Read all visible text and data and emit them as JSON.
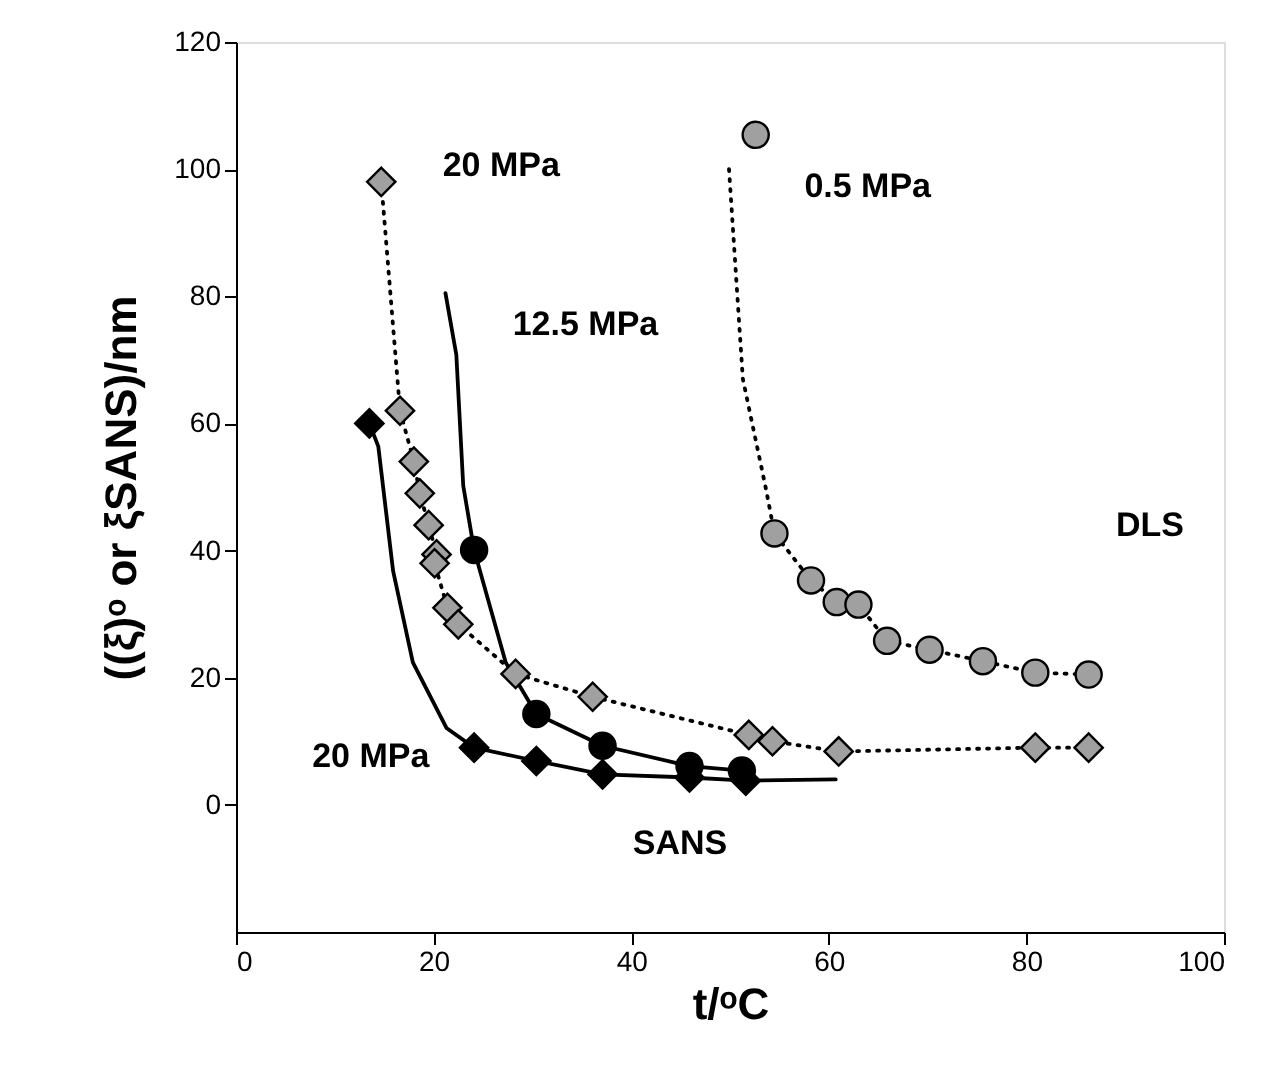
{
  "chart_data": {
    "type": "scatter",
    "xlabel": "t/ᵒC",
    "ylabel": "((ξ)ᵒ or ξSANS)/nm",
    "xlim": [
      0,
      100
    ],
    "xticks": [
      0,
      20,
      40,
      60,
      80,
      100
    ],
    "ylim": [
      -20,
      120
    ],
    "yticks": [
      0,
      20,
      40,
      60,
      80,
      100,
      120
    ],
    "grid": false,
    "series": [
      {
        "type": "line",
        "marker": "none",
        "line_style": "dotted",
        "color": "#000000",
        "x": [
          49.9,
          51.3,
          53.6,
          54.5,
          58.2,
          60.8,
          63.0,
          65.9,
          70.2,
          75.6,
          80.9,
          86.3
        ],
        "values": [
          100,
          67,
          50,
          42.7,
          35.3,
          31.9,
          31.5,
          25.8,
          24.4,
          22.6,
          20.8,
          20.5
        ]
      },
      {
        "name": "0.5 MPa",
        "marker": "circle",
        "color": "#a0a0a0",
        "x": [
          52.6,
          54.5,
          58.2,
          60.8,
          63.0,
          65.9,
          70.2,
          75.6,
          80.9,
          86.3
        ],
        "values": [
          105.4,
          42.7,
          35.3,
          31.9,
          31.5,
          25.8,
          24.4,
          22.6,
          20.8,
          20.5
        ]
      },
      {
        "type": "line",
        "marker": "none",
        "line_style": "dotted",
        "color": "#000000",
        "x": [
          14.7,
          16.6,
          18.0,
          18.6,
          19.5,
          20.3,
          20.1,
          21.4,
          22.5,
          28.3,
          36.1,
          51.9,
          54.3,
          61.0,
          80.9,
          86.3
        ],
        "values": [
          98,
          62,
          54,
          49,
          44,
          39.4,
          38,
          31,
          28.4,
          20.6,
          17,
          11,
          10,
          8.4,
          9,
          9
        ]
      },
      {
        "name": "20 MPa",
        "marker": "diamond",
        "color": "#a0a0a0",
        "x": [
          14.7,
          16.6,
          18.0,
          18.6,
          19.5,
          20.3,
          20.1,
          21.4,
          22.5,
          28.3,
          36.1,
          51.9,
          54.3,
          61.0,
          80.9,
          86.3
        ],
        "values": [
          98,
          62,
          54,
          49,
          44,
          39.4,
          38,
          31,
          28.4,
          20.6,
          17,
          11,
          10,
          8.4,
          9,
          9
        ]
      },
      {
        "type": "line",
        "name": "12.5 MPa",
        "marker": "none",
        "line_style": "solid",
        "color": "#000000",
        "x": [
          21.2,
          22.3,
          23.0,
          24.1,
          27.3,
          30.4,
          37.1,
          45.9,
          51.2
        ],
        "values": [
          80.5,
          70.8,
          50.2,
          40.1,
          22.4,
          14.3,
          9.3,
          6.1,
          5.4
        ]
      },
      {
        "marker": "circle",
        "color": "#000000",
        "x": [
          24.1,
          30.4,
          37.1,
          45.9,
          51.2
        ],
        "values": [
          40.1,
          14.3,
          9.3,
          6.1,
          5.4
        ]
      },
      {
        "type": "line",
        "name": "20 MPa",
        "marker": "none",
        "line_style": "solid",
        "color": "#000000",
        "x": [
          13.5,
          14.4,
          15.9,
          17.9,
          21.3,
          24.1,
          30.4,
          37.1,
          45.9,
          51.6,
          60.7
        ],
        "values": [
          60,
          56.4,
          36.8,
          22.4,
          12.1,
          9,
          6.9,
          4.8,
          4.3,
          3.8,
          4.0
        ]
      },
      {
        "marker": "diamond",
        "color": "#000000",
        "x": [
          13.5,
          24.1,
          30.4,
          37.1,
          45.9,
          51.6
        ],
        "values": [
          60,
          9,
          6.9,
          4.8,
          4.3,
          3.8
        ]
      }
    ],
    "annotations": [
      "DLS",
      "SANS"
    ]
  }
}
